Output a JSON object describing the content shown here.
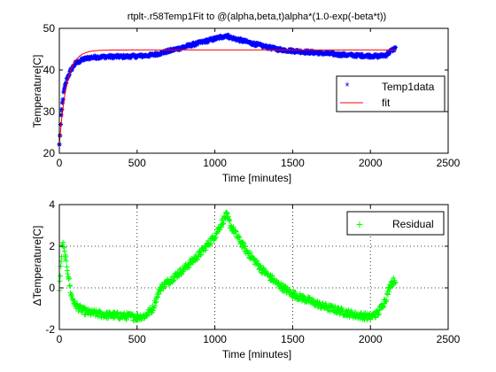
{
  "chart_data": [
    {
      "type": "scatter",
      "title": "rtplt-.r58Temp1Fit to @(alpha,beta,t)alpha*(1.0-exp(-beta*t))",
      "xlabel": "Time [minutes]",
      "ylabel": "Temperature[C]",
      "xlim": [
        0,
        2500
      ],
      "ylim": [
        20,
        50
      ],
      "xticks": [
        "0",
        "500",
        "1000",
        "1500",
        "2000",
        "2500"
      ],
      "yticks": [
        "20",
        "30",
        "40",
        "50"
      ],
      "grid": false,
      "legend_position": "right",
      "series": [
        {
          "name": "Temp1data",
          "marker": "*",
          "color": "#0000ff",
          "x": [
            0,
            10,
            20,
            30,
            50,
            75,
            100,
            150,
            200,
            300,
            400,
            500,
            600,
            700,
            800,
            900,
            1000,
            1050,
            1075,
            1100,
            1200,
            1300,
            1400,
            1500,
            1600,
            1700,
            1800,
            1900,
            2000,
            2050,
            2100,
            2130,
            2160
          ],
          "y": [
            22,
            28,
            32,
            35,
            38,
            40,
            41.5,
            42.5,
            43,
            43.2,
            43.2,
            43.3,
            43.6,
            44.5,
            45.5,
            46.5,
            47.5,
            48,
            48.3,
            47.8,
            46.8,
            45.8,
            45,
            44.6,
            44.3,
            44,
            43.7,
            43.5,
            43.4,
            43.3,
            43.6,
            44.5,
            45.2
          ]
        },
        {
          "name": "fit",
          "marker": "line",
          "color": "#ff0000",
          "alpha": 44.8,
          "beta": 0.021,
          "y_at_zero": 22
        }
      ]
    },
    {
      "type": "scatter",
      "title": "",
      "xlabel": "Time [minutes]",
      "ylabel": "ΔTemperature[C]",
      "xlim": [
        0,
        2500
      ],
      "ylim": [
        -2,
        4
      ],
      "xticks": [
        "0",
        "500",
        "1000",
        "1500",
        "2000",
        "2500"
      ],
      "yticks": [
        "-2",
        "0",
        "2",
        "4"
      ],
      "grid": true,
      "legend_position": "top-right",
      "series": [
        {
          "name": "Residual",
          "marker": "+",
          "color": "#00ff00",
          "x": [
            0,
            10,
            20,
            30,
            50,
            75,
            100,
            150,
            200,
            300,
            400,
            500,
            550,
            600,
            650,
            700,
            800,
            900,
            1000,
            1050,
            1075,
            1100,
            1200,
            1300,
            1400,
            1500,
            1600,
            1700,
            1800,
            1900,
            2000,
            2050,
            2100,
            2130,
            2160
          ],
          "y": [
            0,
            1.0,
            2.2,
            1.8,
            1.0,
            -0.3,
            -0.8,
            -1.1,
            -1.2,
            -1.3,
            -1.35,
            -1.4,
            -1.35,
            -1.0,
            0.0,
            0.3,
            0.9,
            1.6,
            2.5,
            3.2,
            3.5,
            3.0,
            1.8,
            0.9,
            0.2,
            -0.3,
            -0.6,
            -0.9,
            -1.1,
            -1.3,
            -1.4,
            -1.2,
            -0.5,
            0.2,
            0.4
          ]
        }
      ]
    }
  ]
}
